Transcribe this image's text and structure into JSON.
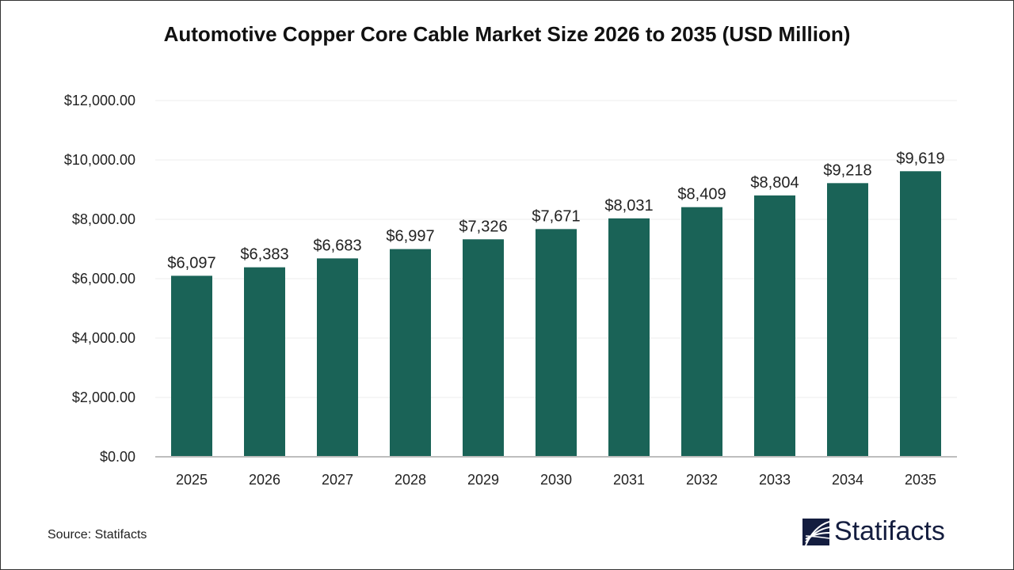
{
  "chart_data": {
    "type": "bar",
    "title": "Automotive Copper Core Cable Market Size 2026 to 2035 (USD Million)",
    "categories": [
      "2025",
      "2026",
      "2027",
      "2028",
      "2029",
      "2030",
      "2031",
      "2032",
      "2033",
      "2034",
      "2035"
    ],
    "values": [
      6097,
      6383,
      6683,
      6997,
      7326,
      7671,
      8031,
      8409,
      8804,
      9218,
      9619
    ],
    "data_labels": [
      "$6,097",
      "$6,383",
      "$6,683",
      "$6,997",
      "$7,326",
      "$7,671",
      "$8,031",
      "$8,409",
      "$8,804",
      "$9,218",
      "$9,619"
    ],
    "ylim": [
      0,
      12000
    ],
    "yticks": [
      0,
      2000,
      4000,
      6000,
      8000,
      10000,
      12000
    ],
    "ytick_labels": [
      "$0.00",
      "$2,000.00",
      "$4,000.00",
      "$6,000.00",
      "$8,000.00",
      "$10,000.00",
      "$12,000.00"
    ],
    "xlabel": "",
    "ylabel": "",
    "grid": true,
    "legend": "none",
    "bar_color": "#1a6357"
  },
  "source": "Source: Statifacts",
  "logo": {
    "text": "Statifacts",
    "color": "#141d3f"
  }
}
